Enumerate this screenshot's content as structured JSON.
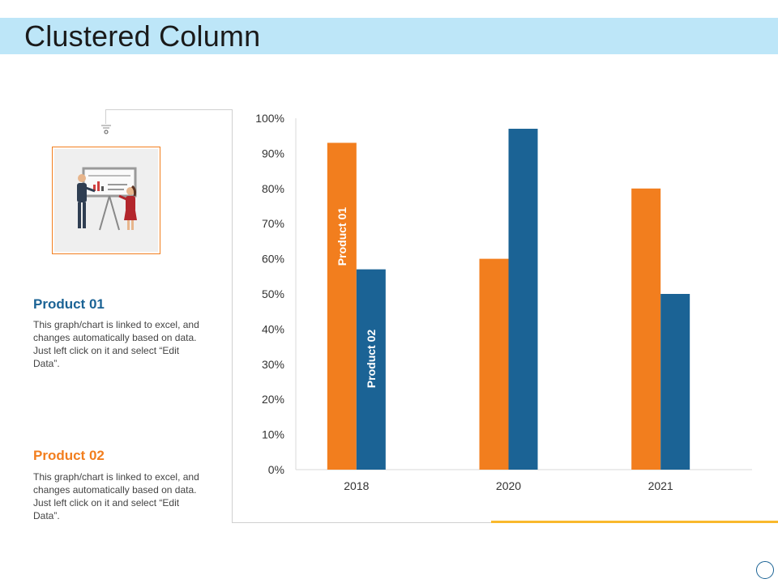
{
  "page": {
    "title": "Clustered Column"
  },
  "products": [
    {
      "name": "Product 01",
      "description": "This graph/chart is linked to excel, and changes automatically based on data. Just left click on it and select “Edit Data”."
    },
    {
      "name": "Product 02",
      "description": "This graph/chart is linked to excel, and changes automatically based on data. Just left click on it and select “Edit Data”."
    }
  ],
  "colors": {
    "title_bar": "#bde6f8",
    "product_01": "#f27e1e",
    "product_02": "#1b6395",
    "accent": "#f9b92d"
  },
  "icons": {
    "illustration": "presentation-people-illustration",
    "hook": "hook-icon",
    "corner": "circle-icon"
  },
  "chart_data": {
    "type": "bar",
    "categories": [
      "2018",
      "2020",
      "2021"
    ],
    "series": [
      {
        "name": "Product 01",
        "values": [
          93,
          60,
          80
        ],
        "color": "#f27e1e"
      },
      {
        "name": "Product 02",
        "values": [
          57,
          97,
          50
        ],
        "color": "#1b6395"
      }
    ],
    "ylim": [
      0,
      100
    ],
    "yticks": [
      "0%",
      "10%",
      "20%",
      "30%",
      "40%",
      "50%",
      "60%",
      "70%",
      "80%",
      "90%",
      "100%"
    ],
    "grid": false,
    "legend": "none",
    "data_labels": "series name rotated inside first category bars"
  }
}
